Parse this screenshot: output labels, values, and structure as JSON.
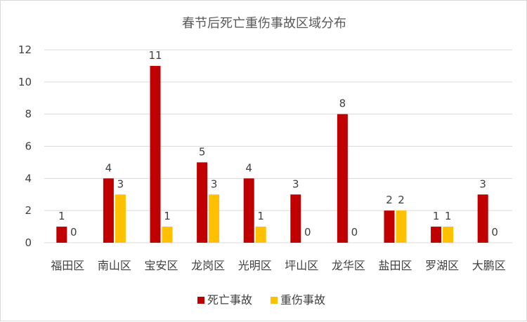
{
  "chart_data": {
    "type": "bar",
    "title": "春节后死亡重伤事故区域分布",
    "categories": [
      "福田区",
      "南山区",
      "宝安区",
      "龙岗区",
      "光明区",
      "坪山区",
      "龙华区",
      "盐田区",
      "罗湖区",
      "大鹏区"
    ],
    "series": [
      {
        "name": "死亡事故",
        "color": "#c00000",
        "values": [
          1,
          4,
          11,
          5,
          4,
          3,
          8,
          2,
          1,
          3
        ]
      },
      {
        "name": "重伤事故",
        "color": "#ffc000",
        "values": [
          0,
          3,
          1,
          3,
          1,
          0,
          0,
          2,
          1,
          0
        ]
      }
    ],
    "ylim": [
      0,
      12
    ],
    "yticks": [
      0,
      2,
      4,
      6,
      8,
      10,
      12
    ],
    "grid": true,
    "legend_position": "bottom",
    "data_labels": true
  }
}
